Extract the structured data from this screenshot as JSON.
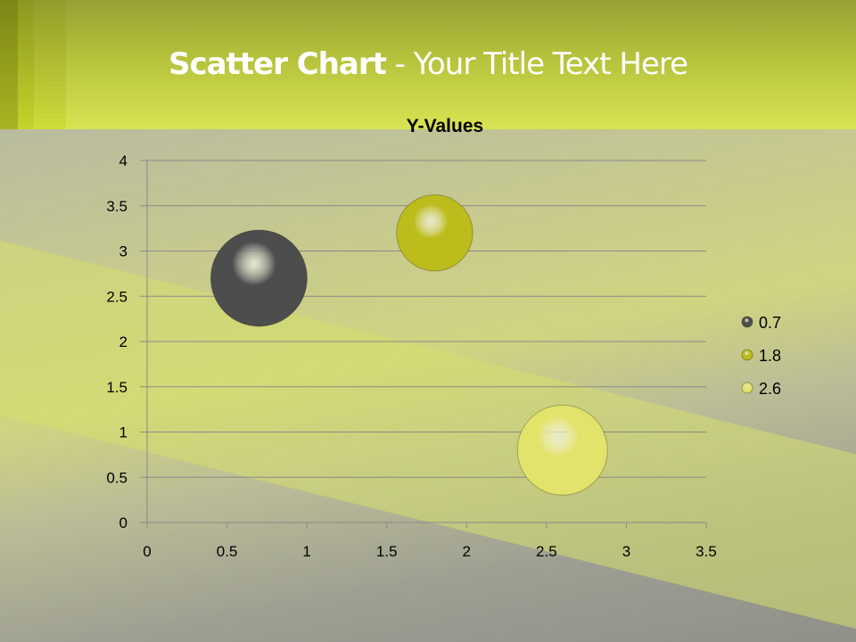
{
  "slide": {
    "title_bold": "Scatter Chart",
    "title_rest": " - Your Title Text Here"
  },
  "chart_data": {
    "type": "bubble",
    "title": "Y-Values",
    "xlim": [
      0,
      3.5
    ],
    "ylim": [
      0,
      4
    ],
    "x_ticks": [
      "0",
      "0.5",
      "1",
      "1.5",
      "2",
      "2.5",
      "3",
      "3.5"
    ],
    "y_ticks": [
      "0",
      "0.5",
      "1",
      "1.5",
      "2",
      "2.5",
      "3",
      "3.5",
      "4"
    ],
    "grid": "horizontal",
    "legend_position": "right",
    "series": [
      {
        "name": "0.7",
        "x": 0.7,
        "y": 2.7,
        "color": "#4d4d4d",
        "size": 1.6
      },
      {
        "name": "1.8",
        "x": 1.8,
        "y": 3.2,
        "color": "#bcbc1c",
        "size": 1.0
      },
      {
        "name": "2.6",
        "x": 2.6,
        "y": 0.8,
        "color": "#e2e36a",
        "size": 1.4
      }
    ]
  }
}
